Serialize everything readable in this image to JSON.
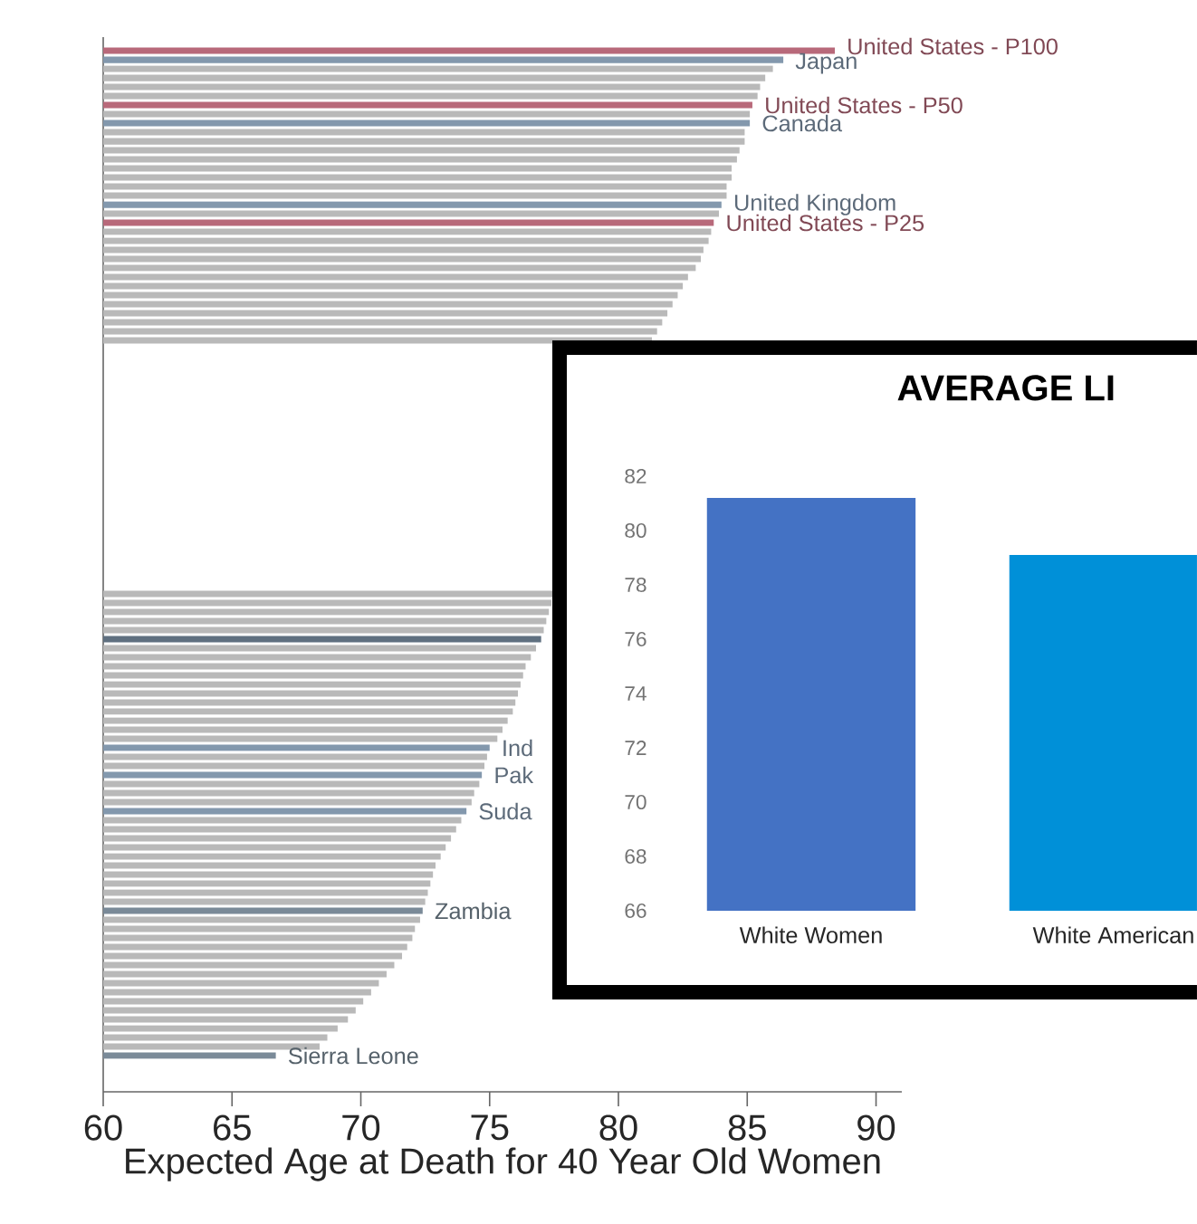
{
  "chart_data": [
    {
      "type": "bar",
      "orientation": "horizontal",
      "xlabel": "Expected Age at Death for 40 Year Old Women",
      "categories": [
        "United States - P100",
        "Japan",
        null,
        null,
        null,
        null,
        "United States - P50",
        null,
        "Canada",
        null,
        null,
        null,
        null,
        null,
        null,
        null,
        null,
        "United Kingdom",
        null,
        "United States - P25",
        null,
        null,
        null,
        null,
        null,
        null,
        null,
        null,
        null,
        null,
        null,
        null,
        null,
        null,
        null,
        null,
        null,
        null,
        null,
        null,
        null,
        null,
        null,
        null,
        null,
        null,
        null,
        null,
        null,
        null,
        null,
        null,
        null,
        null,
        null,
        null,
        null,
        null,
        null,
        null,
        null,
        null,
        null,
        null,
        null,
        null,
        null,
        null,
        null,
        null,
        null,
        null,
        null,
        null,
        null,
        null,
        null,
        "Ind",
        null,
        null,
        "Pak",
        null,
        null,
        null,
        "Suda",
        null,
        null,
        null,
        null,
        null,
        null,
        null,
        null,
        null,
        null,
        "Zambia",
        null,
        null,
        null,
        null,
        null,
        null,
        null,
        null,
        null,
        null,
        null,
        null,
        null,
        null,
        null,
        "Sierra Leone"
      ],
      "values": [
        88.4,
        86.4,
        86.0,
        85.7,
        85.5,
        85.4,
        85.2,
        85.1,
        85.1,
        84.9,
        84.9,
        84.7,
        84.6,
        84.4,
        84.4,
        84.2,
        84.2,
        84.0,
        83.9,
        83.7,
        83.6,
        83.5,
        83.3,
        83.2,
        83.0,
        82.7,
        82.5,
        82.3,
        82.1,
        81.9,
        81.7,
        81.5,
        81.3,
        null,
        null,
        null,
        null,
        null,
        null,
        null,
        null,
        null,
        null,
        null,
        null,
        null,
        null,
        null,
        null,
        null,
        null,
        null,
        null,
        null,
        null,
        null,
        null,
        null,
        null,
        null,
        77.6,
        77.4,
        77.3,
        77.2,
        77.1,
        77.0,
        76.8,
        76.6,
        76.4,
        76.3,
        76.2,
        76.1,
        76.0,
        75.9,
        75.7,
        75.5,
        75.3,
        75.0,
        74.9,
        74.8,
        74.7,
        74.6,
        74.4,
        74.3,
        74.1,
        73.9,
        73.7,
        73.5,
        73.3,
        73.1,
        72.9,
        72.8,
        72.7,
        72.6,
        72.5,
        72.4,
        72.3,
        72.1,
        72.0,
        71.8,
        71.6,
        71.3,
        71.0,
        70.7,
        70.4,
        70.1,
        69.8,
        69.5,
        69.1,
        68.7,
        68.4,
        66.7
      ],
      "colors": [
        "#b8697a",
        "#8398ad",
        "#b9b9b9",
        "#b9b9b9",
        "#b9b9b9",
        "#b9b9b9",
        "#b8697a",
        "#b9b9b9",
        "#8398ad",
        "#b9b9b9",
        "#b9b9b9",
        "#b9b9b9",
        "#b9b9b9",
        "#b9b9b9",
        "#b9b9b9",
        "#b9b9b9",
        "#b9b9b9",
        "#8398ad",
        "#b9b9b9",
        "#b8697a",
        "#b9b9b9",
        "#b9b9b9",
        "#b9b9b9",
        "#b9b9b9",
        "#b9b9b9",
        "#b9b9b9",
        "#b9b9b9",
        "#b9b9b9",
        "#b9b9b9",
        "#b9b9b9",
        "#b9b9b9",
        "#b9b9b9",
        "#b9b9b9",
        "#b9b9b9",
        "#b9b9b9",
        "#b9b9b9",
        "#b9b9b9",
        "#b9b9b9",
        "#b9b9b9",
        "#b9b9b9",
        "#b9b9b9",
        "#b9b9b9",
        "#b9b9b9",
        "#b9b9b9",
        "#b9b9b9",
        "#b9b9b9",
        "#b9b9b9",
        "#b9b9b9",
        "#b9b9b9",
        "#b9b9b9",
        "#b9b9b9",
        "#8398ad",
        "#b9b9b9",
        "#b9b9b9",
        "#b9b9b9",
        "#b9b9b9",
        "#b9b9b9",
        "#8398ad",
        "#b8697a",
        "#b9b9b9",
        "#b9b9b9",
        "#b9b9b9",
        "#b9b9b9",
        "#b9b9b9",
        "#b9b9b9",
        "#5f7080",
        "#b9b9b9",
        "#b9b9b9",
        "#b9b9b9",
        "#b9b9b9",
        "#b9b9b9",
        "#b9b9b9",
        "#b9b9b9",
        "#b9b9b9",
        "#b9b9b9",
        "#b9b9b9",
        "#b9b9b9",
        "#8398ad",
        "#b9b9b9",
        "#b9b9b9",
        "#8398ad",
        "#b9b9b9",
        "#b9b9b9",
        "#b9b9b9",
        "#8398ad",
        "#b9b9b9",
        "#b9b9b9",
        "#b9b9b9",
        "#b9b9b9",
        "#b9b9b9",
        "#b9b9b9",
        "#b9b9b9",
        "#b9b9b9",
        "#b9b9b9",
        "#b9b9b9",
        "#7a8a98",
        "#b9b9b9",
        "#b9b9b9",
        "#b9b9b9",
        "#b9b9b9",
        "#b9b9b9",
        "#b9b9b9",
        "#b9b9b9",
        "#b9b9b9",
        "#b9b9b9",
        "#b9b9b9",
        "#b9b9b9",
        "#b9b9b9",
        "#b9b9b9",
        "#b9b9b9",
        "#b9b9b9",
        "#7a8a98"
      ],
      "xlim": [
        60,
        91
      ],
      "xticks": [
        60,
        65,
        70,
        75,
        80,
        85,
        90
      ]
    },
    {
      "type": "bar",
      "title": "AVERAGE LI",
      "categories": [
        "White Women",
        "White American"
      ],
      "values": [
        81.2,
        79.1
      ],
      "colors": [
        "#4472c4",
        "#0090d8"
      ],
      "ylim": [
        66,
        82
      ],
      "yticks": [
        66,
        68,
        70,
        72,
        74,
        76,
        78,
        80,
        82
      ]
    }
  ]
}
